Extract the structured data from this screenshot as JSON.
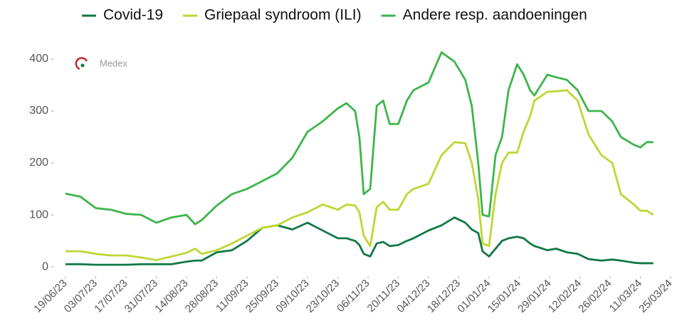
{
  "chart_data": {
    "type": "line",
    "logo": "Medex",
    "x": [
      "2023-06-19",
      "2023-06-26",
      "2023-07-03",
      "2023-07-10",
      "2023-07-17",
      "2023-07-24",
      "2023-07-31",
      "2023-08-07",
      "2023-08-14",
      "2023-08-18",
      "2023-08-21",
      "2023-08-28",
      "2023-09-04",
      "2023-09-11",
      "2023-09-18",
      "2023-09-25",
      "2023-10-02",
      "2023-10-09",
      "2023-10-16",
      "2023-10-23",
      "2023-10-27",
      "2023-10-31",
      "2023-11-02",
      "2023-11-04",
      "2023-11-07",
      "2023-11-10",
      "2023-11-13",
      "2023-11-16",
      "2023-11-20",
      "2023-11-24",
      "2023-11-27",
      "2023-12-04",
      "2023-12-10",
      "2023-12-16",
      "2023-12-21",
      "2023-12-24",
      "2023-12-27",
      "2023-12-29",
      "2024-01-01",
      "2024-01-04",
      "2024-01-07",
      "2024-01-10",
      "2024-01-14",
      "2024-01-17",
      "2024-01-20",
      "2024-01-22",
      "2024-01-28",
      "2024-02-01",
      "2024-02-06",
      "2024-02-11",
      "2024-02-16",
      "2024-02-22",
      "2024-02-27",
      "2024-03-02",
      "2024-03-08",
      "2024-03-11",
      "2024-03-14",
      "2024-03-17"
    ],
    "series": [
      {
        "name": "Covid-19",
        "color": "#127845",
        "values": [
          5,
          5,
          4,
          4,
          4,
          5,
          5,
          5,
          10,
          12,
          12,
          28,
          32,
          50,
          75,
          80,
          72,
          85,
          70,
          55,
          55,
          50,
          42,
          25,
          20,
          45,
          48,
          40,
          42,
          50,
          55,
          70,
          80,
          95,
          85,
          72,
          65,
          30,
          20,
          35,
          50,
          55,
          58,
          55,
          45,
          40,
          32,
          35,
          28,
          25,
          15,
          12,
          14,
          12,
          8,
          7,
          7,
          7
        ]
      },
      {
        "name": "Griepaal syndroom (ILI)",
        "color": "#bfd634",
        "values": [
          30,
          30,
          25,
          22,
          22,
          18,
          13,
          20,
          27,
          35,
          25,
          32,
          45,
          60,
          75,
          80,
          95,
          105,
          120,
          110,
          120,
          118,
          105,
          60,
          40,
          115,
          125,
          110,
          110,
          140,
          150,
          160,
          215,
          240,
          238,
          200,
          130,
          45,
          40,
          140,
          200,
          220,
          220,
          260,
          290,
          320,
          337,
          338,
          340,
          320,
          255,
          215,
          200,
          140,
          120,
          108,
          108,
          100
        ]
      },
      {
        "name": "Andere resp. aandoeningen",
        "color": "#3db54a",
        "values": [
          141,
          135,
          113,
          110,
          102,
          100,
          85,
          95,
          100,
          82,
          90,
          118,
          140,
          150,
          165,
          180,
          210,
          260,
          280,
          305,
          315,
          300,
          250,
          140,
          150,
          310,
          320,
          275,
          275,
          320,
          340,
          355,
          413,
          395,
          360,
          310,
          200,
          100,
          97,
          215,
          250,
          340,
          390,
          370,
          340,
          330,
          370,
          365,
          360,
          340,
          300,
          300,
          280,
          250,
          235,
          230,
          240,
          240
        ]
      }
    ],
    "xlim": [
      "2023-06-19",
      "2024-03-25"
    ],
    "xticks": [
      {
        "value": "2023-06-19",
        "label": "19/06/23"
      },
      {
        "value": "2023-07-03",
        "label": "03/07/23"
      },
      {
        "value": "2023-07-17",
        "label": "17/07/23"
      },
      {
        "value": "2023-07-31",
        "label": "31/07/23"
      },
      {
        "value": "2023-08-14",
        "label": "14/08/23"
      },
      {
        "value": "2023-08-28",
        "label": "28/08/23"
      },
      {
        "value": "2023-09-11",
        "label": "11/09/23"
      },
      {
        "value": "2023-09-25",
        "label": "25/09/23"
      },
      {
        "value": "2023-10-09",
        "label": "09/10/23"
      },
      {
        "value": "2023-10-23",
        "label": "23/10/23"
      },
      {
        "value": "2023-11-06",
        "label": "06/11/23"
      },
      {
        "value": "2023-11-20",
        "label": "20/11/23"
      },
      {
        "value": "2023-12-04",
        "label": "04/12/23"
      },
      {
        "value": "2023-12-18",
        "label": "18/12/23"
      },
      {
        "value": "2024-01-01",
        "label": "01/01/24"
      },
      {
        "value": "2024-01-15",
        "label": "15/01/24"
      },
      {
        "value": "2024-01-29",
        "label": "29/01/24"
      },
      {
        "value": "2024-02-12",
        "label": "12/02/24"
      },
      {
        "value": "2024-02-26",
        "label": "26/02/24"
      },
      {
        "value": "2024-03-11",
        "label": "11/03/24"
      },
      {
        "value": "2024-03-25",
        "label": "25/03/24"
      }
    ],
    "ylim": [
      -15,
      425
    ],
    "yticks": [
      0,
      100,
      200,
      300,
      400
    ],
    "legend": "top"
  }
}
